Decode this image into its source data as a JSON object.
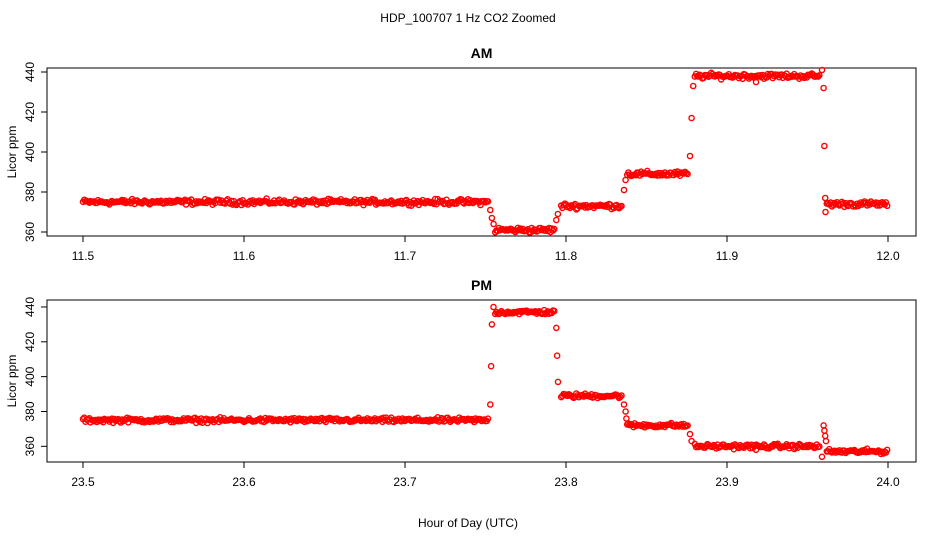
{
  "title": "HDP_100707  1 Hz CO2 Zoomed",
  "xlabel": "Hour of Day (UTC)",
  "colors": {
    "points": "#ff0000",
    "frame": "#000000"
  },
  "chart_data": [
    {
      "type": "scatter",
      "title": "AM",
      "ylabel": "Licor ppm",
      "xlim": [
        11.5,
        12.0
      ],
      "ylim": [
        358,
        442
      ],
      "xticks": [
        "11.5",
        "11.6",
        "11.7",
        "11.8",
        "11.9",
        "12.0"
      ],
      "yticks": [
        "360",
        "380",
        "400",
        "420",
        "440"
      ],
      "segments": [
        {
          "x": [
            11.5,
            11.752
          ],
          "y": 375
        },
        {
          "x": [
            11.756,
            11.793
          ],
          "y": 361
        },
        {
          "x": [
            11.797,
            11.835
          ],
          "y": 373
        },
        {
          "x": [
            11.838,
            11.876
          ],
          "y": 389
        },
        {
          "x": [
            11.88,
            11.958
          ],
          "y": 438
        },
        {
          "x": [
            11.962,
            12.0
          ],
          "y": 374
        }
      ],
      "transitions": [
        {
          "x": 11.753,
          "y": 371
        },
        {
          "x": 11.754,
          "y": 367
        },
        {
          "x": 11.755,
          "y": 364
        },
        {
          "x": 11.794,
          "y": 366
        },
        {
          "x": 11.795,
          "y": 369
        },
        {
          "x": 11.836,
          "y": 381
        },
        {
          "x": 11.837,
          "y": 386
        },
        {
          "x": 11.877,
          "y": 398
        },
        {
          "x": 11.878,
          "y": 417
        },
        {
          "x": 11.879,
          "y": 433
        },
        {
          "x": 11.918,
          "y": 435
        },
        {
          "x": 11.959,
          "y": 441
        },
        {
          "x": 11.96,
          "y": 432
        },
        {
          "x": 11.9605,
          "y": 403
        },
        {
          "x": 11.961,
          "y": 377
        },
        {
          "x": 11.9612,
          "y": 370
        }
      ]
    },
    {
      "type": "scatter",
      "title": "PM",
      "ylabel": "Licor ppm",
      "xlim": [
        23.5,
        24.0
      ],
      "ylim": [
        351,
        444
      ],
      "xticks": [
        "23.5",
        "23.6",
        "23.7",
        "23.8",
        "23.9",
        "24.0"
      ],
      "yticks": [
        "360",
        "380",
        "400",
        "420",
        "440"
      ],
      "segments": [
        {
          "x": [
            23.5,
            23.752
          ],
          "y": 375
        },
        {
          "x": [
            23.756,
            23.793
          ],
          "y": 437
        },
        {
          "x": [
            23.797,
            23.835
          ],
          "y": 389
        },
        {
          "x": [
            23.838,
            23.876
          ],
          "y": 372
        },
        {
          "x": [
            23.88,
            23.958
          ],
          "y": 360
        },
        {
          "x": [
            23.962,
            24.0
          ],
          "y": 357
        }
      ],
      "transitions": [
        {
          "x": 23.753,
          "y": 384
        },
        {
          "x": 23.7535,
          "y": 406
        },
        {
          "x": 23.754,
          "y": 430
        },
        {
          "x": 23.755,
          "y": 440
        },
        {
          "x": 23.794,
          "y": 428
        },
        {
          "x": 23.7945,
          "y": 412
        },
        {
          "x": 23.795,
          "y": 397
        },
        {
          "x": 23.836,
          "y": 384
        },
        {
          "x": 23.837,
          "y": 380
        },
        {
          "x": 23.8375,
          "y": 376
        },
        {
          "x": 23.877,
          "y": 367
        },
        {
          "x": 23.878,
          "y": 363
        },
        {
          "x": 23.918,
          "y": 358
        },
        {
          "x": 23.959,
          "y": 354
        },
        {
          "x": 23.96,
          "y": 372
        },
        {
          "x": 23.9605,
          "y": 369
        },
        {
          "x": 23.961,
          "y": 366
        },
        {
          "x": 23.9615,
          "y": 363
        }
      ]
    }
  ]
}
